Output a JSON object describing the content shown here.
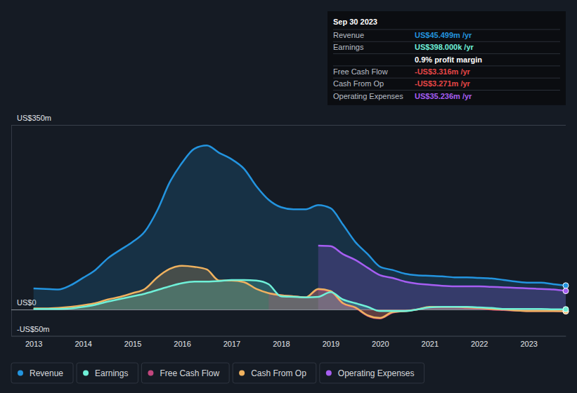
{
  "chart_data": {
    "type": "area",
    "x": [
      2013,
      2013.25,
      2013.5,
      2013.75,
      2014,
      2014.25,
      2014.5,
      2014.75,
      2015,
      2015.25,
      2015.5,
      2015.75,
      2016,
      2016.25,
      2016.5,
      2016.75,
      2017,
      2017.25,
      2017.5,
      2017.75,
      2018,
      2018.25,
      2018.5,
      2018.75,
      2019,
      2019.25,
      2019.5,
      2019.75,
      2020,
      2020.25,
      2020.5,
      2020.75,
      2021,
      2021.25,
      2021.5,
      2021.75,
      2022,
      2022.25,
      2022.5,
      2022.75,
      2023,
      2023.25,
      2023.5,
      2023.75
    ],
    "xlim": [
      2012.55,
      2023.75
    ],
    "xticks": [
      2013,
      2014,
      2015,
      2016,
      2017,
      2018,
      2019,
      2020,
      2021,
      2022,
      2023
    ],
    "ylim": [
      -50,
      350
    ],
    "yticks": [
      {
        "value": 350,
        "label": "US$350m"
      },
      {
        "value": 0,
        "label": "US$0"
      },
      {
        "value": -50,
        "label": "-US$50m"
      }
    ],
    "grid": true,
    "legend": "bottom",
    "series": [
      {
        "name": "Revenue",
        "color": "#2394df",
        "values": [
          40,
          39,
          38,
          46,
          60,
          75,
          97,
          113,
          128,
          148,
          188,
          241,
          278,
          305,
          311,
          297,
          285,
          267,
          234,
          208,
          194,
          190,
          190,
          198,
          192,
          161,
          128,
          105,
          81,
          75,
          68,
          65,
          64,
          63,
          61,
          61,
          60,
          59,
          56,
          53,
          51,
          51,
          48,
          45.499
        ]
      },
      {
        "name": "Earnings",
        "color": "#6ff0d8",
        "values": [
          1,
          1,
          1,
          2,
          5,
          9,
          15,
          20,
          25,
          30,
          37,
          44,
          50,
          53,
          53,
          54,
          56,
          56,
          55,
          48,
          25,
          24,
          23,
          24,
          33,
          19,
          12,
          5,
          -3,
          -3,
          -3,
          0,
          4,
          5,
          5,
          5,
          4,
          3,
          1,
          1,
          1,
          1,
          0.5,
          0.398
        ]
      },
      {
        "name": "Free Cash Flow",
        "color": "#c2467d",
        "values": [
          null,
          null,
          null,
          null,
          null,
          null,
          null,
          null,
          null,
          null,
          null,
          null,
          null,
          null,
          null,
          null,
          null,
          null,
          null,
          31,
          27,
          25,
          23,
          38,
          34,
          11,
          3,
          -12,
          -17,
          -6,
          -3,
          0,
          4,
          4,
          4,
          3,
          2,
          0,
          -1,
          -2,
          -3,
          -3,
          -3,
          -3.316
        ]
      },
      {
        "name": "Cash From Op",
        "color": "#f0b25f",
        "values": [
          2,
          2,
          3,
          5,
          8,
          12,
          19,
          24,
          31,
          39,
          61,
          77,
          83,
          81,
          76,
          55,
          55,
          52,
          39,
          31,
          27,
          25,
          23,
          39,
          35,
          12,
          4,
          -11,
          -16,
          -5,
          -3,
          0,
          5,
          5,
          5,
          4,
          3,
          1,
          0,
          -2,
          -3,
          -3,
          -3,
          -3.271
        ]
      },
      {
        "name": "Operating Expenses",
        "color": "#a65ef2",
        "values": [
          null,
          null,
          null,
          null,
          null,
          null,
          null,
          null,
          null,
          null,
          null,
          null,
          null,
          null,
          null,
          null,
          null,
          null,
          null,
          null,
          null,
          null,
          null,
          121,
          120,
          105,
          94,
          79,
          65,
          60,
          53,
          49,
          47,
          45,
          44,
          44,
          44,
          43,
          42,
          41,
          40,
          39,
          38,
          35.236
        ]
      }
    ],
    "tooltip": {
      "title": "Sep 30 2023",
      "rows": [
        {
          "label": "Revenue",
          "value": "US$45.499m /yr",
          "color": "#2394df"
        },
        {
          "label": "Earnings",
          "value": "US$398.000k /yr",
          "color": "#6ff0d8"
        },
        {
          "value": "0.9% profit margin",
          "color": "#ffffff"
        },
        {
          "label": "Free Cash Flow",
          "value": "-US$3.316m /yr",
          "color": "#e64646"
        },
        {
          "label": "Cash From Op",
          "value": "-US$3.271m /yr",
          "color": "#e64646"
        },
        {
          "label": "Operating Expenses",
          "value": "US$35.236m /yr",
          "color": "#a65ef2"
        }
      ]
    }
  }
}
